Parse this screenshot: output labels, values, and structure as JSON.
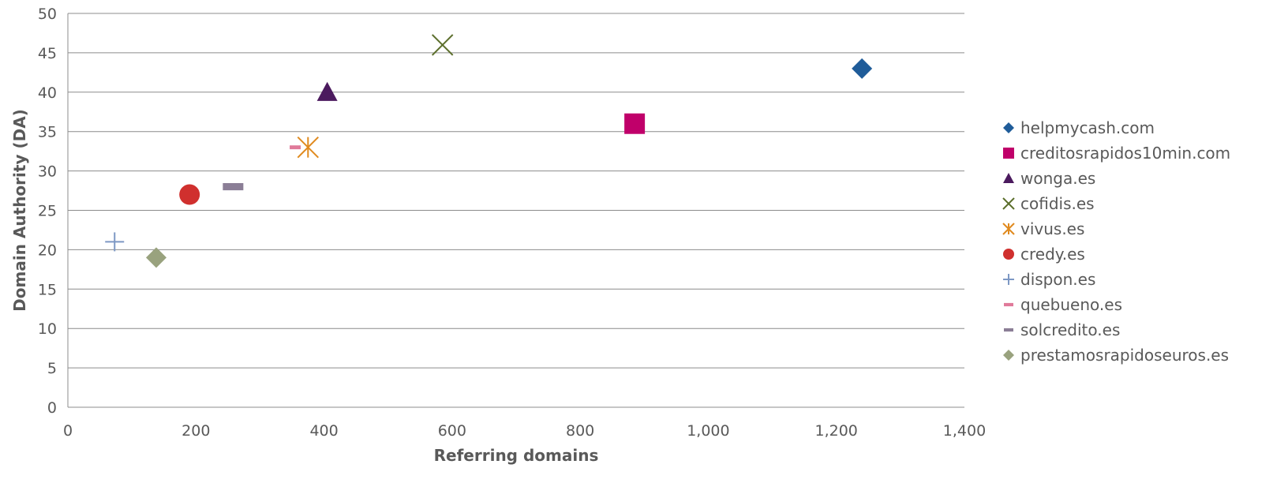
{
  "chart_data": {
    "type": "scatter",
    "title": "",
    "xlabel": "Referring domains",
    "ylabel": "Domain Authority (DA)",
    "xlim": [
      0,
      1400
    ],
    "ylim": [
      0,
      50
    ],
    "xticks": [
      0,
      200,
      400,
      600,
      800,
      1000,
      1200,
      1400
    ],
    "xtick_labels": [
      "0",
      "200",
      "400",
      "600",
      "800",
      "1,000",
      "1,200",
      "1,400"
    ],
    "yticks": [
      0,
      5,
      10,
      15,
      20,
      25,
      30,
      35,
      40,
      45,
      50
    ],
    "ytick_labels": [
      "0",
      "5",
      "10",
      "15",
      "20",
      "25",
      "30",
      "35",
      "40",
      "45",
      "50"
    ],
    "grid": "horizontal",
    "legend_position": "right",
    "series": [
      {
        "name": "helpmycash.com",
        "marker": "diamond",
        "color": "#1F5C99",
        "points": [
          [
            1240,
            43
          ]
        ]
      },
      {
        "name": "creditosrapidos10min.com",
        "marker": "square",
        "color": "#C0006A",
        "points": [
          [
            885,
            36
          ]
        ]
      },
      {
        "name": "wonga.es",
        "marker": "triangle",
        "color": "#4B1A5E",
        "points": [
          [
            405,
            40
          ]
        ]
      },
      {
        "name": "cofidis.es",
        "marker": "x",
        "color": "#5B6E2B",
        "points": [
          [
            585,
            46
          ]
        ]
      },
      {
        "name": "vivus.es",
        "marker": "asterisk",
        "color": "#E08A1E",
        "points": [
          [
            375,
            33
          ]
        ]
      },
      {
        "name": "credy.es",
        "marker": "circle",
        "color": "#D0302E",
        "points": [
          [
            190,
            27
          ]
        ]
      },
      {
        "name": "dispon.es",
        "marker": "plus",
        "color": "#7D98C4",
        "points": [
          [
            73,
            21
          ]
        ]
      },
      {
        "name": "quebueno.es",
        "marker": "dash",
        "color": "#E07A9A",
        "points": [
          [
            355,
            33
          ]
        ]
      },
      {
        "name": "solcredito.es",
        "marker": "dash",
        "color": "#8B7E96",
        "points": [
          [
            258,
            28
          ]
        ]
      },
      {
        "name": "prestamosrapidoseuros.es",
        "marker": "diamond",
        "color": "#99A27E",
        "points": [
          [
            138,
            19
          ]
        ]
      }
    ]
  }
}
